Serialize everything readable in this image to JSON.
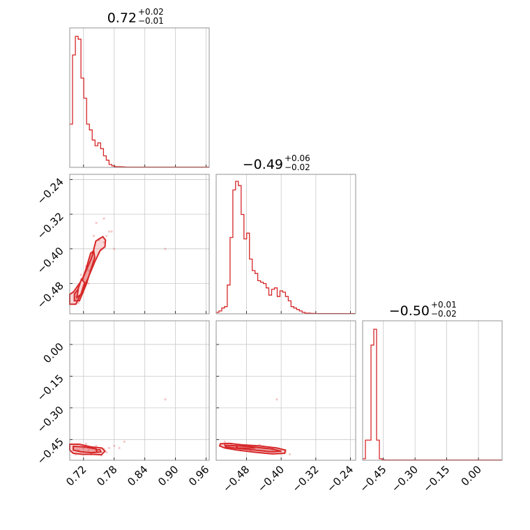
{
  "chart_data": {
    "type": "corner",
    "accent": "#d62728",
    "parameters": [
      {
        "title": "0.72",
        "upper": "+0.02",
        "lower": "−0.01",
        "range": [
          0.693,
          0.966
        ],
        "ticks": [
          0.72,
          0.78,
          0.84,
          0.9,
          0.96
        ],
        "tick_labels": [
          "0.72",
          "0.78",
          "0.84",
          "0.90",
          "0.96"
        ]
      },
      {
        "title": "−0.49",
        "upper": "+0.06",
        "lower": "−0.02",
        "range": [
          -0.55,
          -0.228
        ],
        "ticks": [
          -0.48,
          -0.4,
          -0.32,
          -0.24
        ],
        "tick_labels": [
          "−0.48",
          "−0.40",
          "−0.32",
          "−0.24"
        ],
        "y_ticks": [
          -0.24,
          -0.32,
          -0.4,
          -0.48
        ],
        "y_tick_labels": [
          "−0.24",
          "−0.32",
          "−0.40",
          "−0.48"
        ]
      },
      {
        "title": "−0.50",
        "upper": "+0.01",
        "lower": "−0.02",
        "range": [
          -0.548,
          0.112
        ],
        "ticks": [
          -0.45,
          -0.3,
          -0.15,
          0.0
        ],
        "tick_labels": [
          "−0.45",
          "−0.30",
          "−0.15",
          "0.00"
        ],
        "y_ticks": [
          0.0,
          -0.15,
          -0.3,
          -0.45
        ],
        "y_tick_labels": [
          "0.00",
          "−0.15",
          "−0.30",
          "−0.45"
        ]
      }
    ],
    "histograms": [
      {
        "param": 0,
        "bin_start": 0.693,
        "bin_width": 0.0055,
        "counts": [
          0.3,
          0.78,
          0.91,
          0.89,
          0.62,
          0.48,
          0.3,
          0.26,
          0.19,
          0.15,
          0.17,
          0.13,
          0.08,
          0.05,
          0.02,
          0.01,
          0.005,
          0.005,
          0.004,
          0.003,
          0.002,
          0.002,
          0.002,
          0.002,
          0.002,
          0.002,
          0.002,
          0.002,
          0.002,
          0.002,
          0.002,
          0.002,
          0.002,
          0.002,
          0.002,
          0.002,
          0.002,
          0.002,
          0.002,
          0.002,
          0.002,
          0.002,
          0.002,
          0.002,
          0.002,
          0.002,
          0.002,
          0.002,
          0.002,
          0.002
        ]
      },
      {
        "param": 1,
        "bin_start": -0.55,
        "bin_width": 0.0064,
        "counts": [
          0.01,
          0.02,
          0.04,
          0.05,
          0.2,
          0.53,
          0.86,
          0.92,
          0.89,
          0.69,
          0.52,
          0.56,
          0.38,
          0.3,
          0.28,
          0.23,
          0.22,
          0.21,
          0.18,
          0.13,
          0.17,
          0.18,
          0.12,
          0.16,
          0.15,
          0.12,
          0.09,
          0.05,
          0.04,
          0.03,
          0.02,
          0.01,
          0.005,
          0.005,
          0.003,
          0.003,
          0.002,
          0.002,
          0.002,
          0.002,
          0.002,
          0.002,
          0.002,
          0.002,
          0.002,
          0.002,
          0.002,
          0.002,
          0.002,
          0.002
        ]
      },
      {
        "param": 2,
        "bin_start": -0.548,
        "bin_width": 0.0132,
        "counts": [
          0.01,
          0.14,
          0.14,
          0.8,
          0.91,
          0.14,
          0.01,
          0.003,
          0.002,
          0.002,
          0.002,
          0.002,
          0.002,
          0.002,
          0.002,
          0.002,
          0.002,
          0.002,
          0.002,
          0.002,
          0.002,
          0.002,
          0.002,
          0.002,
          0.002,
          0.002,
          0.002,
          0.002,
          0.002,
          0.002,
          0.002,
          0.002,
          0.002,
          0.002,
          0.002,
          0.002,
          0.002,
          0.002,
          0.002,
          0.002,
          0.002,
          0.002,
          0.002,
          0.002,
          0.002,
          0.002,
          0.002,
          0.002,
          0.002,
          0.002
        ]
      }
    ],
    "pairs": [
      {
        "x_param": 0,
        "y_param": 1,
        "outer_contour": [
          [
            0.693,
            -0.528
          ],
          [
            0.705,
            -0.528
          ],
          [
            0.728,
            -0.47
          ],
          [
            0.742,
            -0.43
          ],
          [
            0.752,
            -0.405
          ],
          [
            0.762,
            -0.395
          ],
          [
            0.763,
            -0.38
          ],
          [
            0.758,
            -0.372
          ],
          [
            0.752,
            -0.376
          ],
          [
            0.744,
            -0.382
          ],
          [
            0.736,
            -0.42
          ],
          [
            0.718,
            -0.47
          ],
          [
            0.7,
            -0.5
          ],
          [
            0.693,
            -0.505
          ]
        ],
        "inner_contour": [
          [
            0.702,
            -0.52
          ],
          [
            0.712,
            -0.52
          ],
          [
            0.726,
            -0.48
          ],
          [
            0.735,
            -0.445
          ],
          [
            0.742,
            -0.42
          ],
          [
            0.74,
            -0.405
          ],
          [
            0.734,
            -0.41
          ],
          [
            0.724,
            -0.45
          ],
          [
            0.712,
            -0.488
          ],
          [
            0.702,
            -0.505
          ]
        ],
        "core_contour": [
          [
            0.707,
            -0.512
          ],
          [
            0.715,
            -0.505
          ],
          [
            0.722,
            -0.478
          ],
          [
            0.716,
            -0.47
          ],
          [
            0.71,
            -0.49
          ]
        ],
        "samples": [
          [
            0.7,
            -0.5
          ],
          [
            0.71,
            -0.49
          ],
          [
            0.72,
            -0.47
          ],
          [
            0.73,
            -0.45
          ],
          [
            0.74,
            -0.43
          ],
          [
            0.75,
            -0.41
          ],
          [
            0.755,
            -0.4
          ],
          [
            0.76,
            -0.385
          ],
          [
            0.765,
            -0.37
          ],
          [
            0.77,
            -0.36
          ],
          [
            0.745,
            -0.34
          ],
          [
            0.735,
            -0.42
          ],
          [
            0.715,
            -0.46
          ],
          [
            0.705,
            -0.51
          ],
          [
            0.725,
            -0.44
          ],
          [
            0.75,
            -0.38
          ],
          [
            0.775,
            -0.36
          ],
          [
            0.78,
            -0.4
          ],
          [
            0.71,
            -0.525
          ],
          [
            0.88,
            -0.4
          ],
          [
            0.76,
            -0.33
          ],
          [
            0.74,
            -0.37
          ],
          [
            0.72,
            -0.5
          ],
          [
            0.73,
            -0.48
          ]
        ]
      },
      {
        "x_param": 0,
        "y_param": 2,
        "outer_contour": [
          [
            0.693,
            -0.472
          ],
          [
            0.712,
            -0.472
          ],
          [
            0.735,
            -0.485
          ],
          [
            0.756,
            -0.49
          ],
          [
            0.762,
            -0.505
          ],
          [
            0.755,
            -0.522
          ],
          [
            0.738,
            -0.52
          ],
          [
            0.718,
            -0.52
          ],
          [
            0.7,
            -0.515
          ],
          [
            0.693,
            -0.5
          ]
        ],
        "inner_contour": [
          [
            0.7,
            -0.482
          ],
          [
            0.722,
            -0.485
          ],
          [
            0.745,
            -0.495
          ],
          [
            0.748,
            -0.51
          ],
          [
            0.735,
            -0.512
          ],
          [
            0.715,
            -0.508
          ],
          [
            0.7,
            -0.5
          ]
        ],
        "core_contour": [
          [
            0.745,
            -0.5
          ],
          [
            0.752,
            -0.498
          ],
          [
            0.754,
            -0.508
          ],
          [
            0.746,
            -0.51
          ]
        ],
        "samples": [
          [
            0.7,
            -0.49
          ],
          [
            0.71,
            -0.5
          ],
          [
            0.72,
            -0.49
          ],
          [
            0.73,
            -0.5
          ],
          [
            0.74,
            -0.51
          ],
          [
            0.75,
            -0.5
          ],
          [
            0.76,
            -0.495
          ],
          [
            0.765,
            -0.51
          ],
          [
            0.77,
            -0.49
          ],
          [
            0.78,
            -0.48
          ],
          [
            0.79,
            -0.49
          ],
          [
            0.8,
            -0.46
          ],
          [
            0.88,
            -0.26
          ],
          [
            0.705,
            -0.52
          ],
          [
            0.725,
            -0.47
          ],
          [
            0.745,
            -0.48
          ],
          [
            0.735,
            -0.52
          ],
          [
            0.755,
            -0.525
          ]
        ]
      },
      {
        "x_param": 1,
        "y_param": 2,
        "outer_contour": [
          [
            -0.54,
            -0.47
          ],
          [
            -0.52,
            -0.468
          ],
          [
            -0.49,
            -0.475
          ],
          [
            -0.45,
            -0.48
          ],
          [
            -0.41,
            -0.49
          ],
          [
            -0.39,
            -0.5
          ],
          [
            -0.392,
            -0.515
          ],
          [
            -0.42,
            -0.518
          ],
          [
            -0.46,
            -0.51
          ],
          [
            -0.5,
            -0.5
          ],
          [
            -0.53,
            -0.49
          ],
          [
            -0.542,
            -0.48
          ]
        ],
        "inner_contour": [
          [
            -0.53,
            -0.477
          ],
          [
            -0.5,
            -0.48
          ],
          [
            -0.46,
            -0.486
          ],
          [
            -0.42,
            -0.495
          ],
          [
            -0.4,
            -0.505
          ],
          [
            -0.42,
            -0.508
          ],
          [
            -0.46,
            -0.5
          ],
          [
            -0.5,
            -0.492
          ],
          [
            -0.528,
            -0.485
          ]
        ],
        "core_contour": [
          [
            -0.505,
            -0.48
          ],
          [
            -0.47,
            -0.483
          ],
          [
            -0.465,
            -0.49
          ],
          [
            -0.5,
            -0.49
          ]
        ],
        "samples": [
          [
            -0.54,
            -0.47
          ],
          [
            -0.52,
            -0.48
          ],
          [
            -0.5,
            -0.48
          ],
          [
            -0.48,
            -0.485
          ],
          [
            -0.46,
            -0.49
          ],
          [
            -0.44,
            -0.49
          ],
          [
            -0.42,
            -0.5
          ],
          [
            -0.4,
            -0.505
          ],
          [
            -0.39,
            -0.51
          ],
          [
            -0.38,
            -0.52
          ],
          [
            -0.41,
            -0.26
          ],
          [
            -0.53,
            -0.46
          ],
          [
            -0.47,
            -0.5
          ],
          [
            -0.45,
            -0.475
          ],
          [
            -0.43,
            -0.515
          ],
          [
            -0.495,
            -0.495
          ],
          [
            -0.515,
            -0.47
          ]
        ]
      }
    ]
  }
}
